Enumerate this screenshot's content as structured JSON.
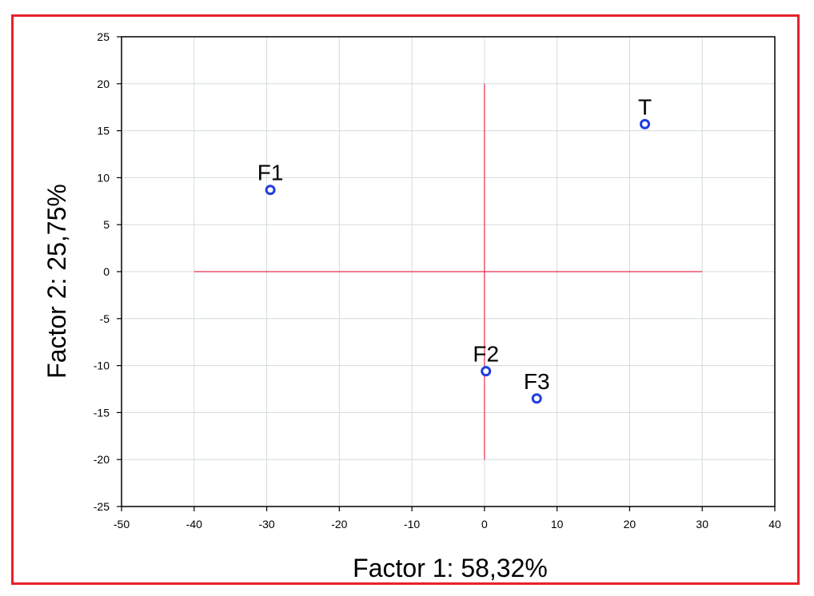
{
  "chart_data": {
    "type": "scatter",
    "xlabel": "Factor 1: 58,32%",
    "ylabel": "Factor 2: 25,75%",
    "xlim": [
      -50,
      40
    ],
    "ylim": [
      -25,
      25
    ],
    "xticks": [
      -50,
      -40,
      -30,
      -20,
      -10,
      0,
      10,
      20,
      30,
      40
    ],
    "yticks": [
      -25,
      -20,
      -15,
      -10,
      -5,
      0,
      5,
      10,
      15,
      20,
      25
    ],
    "grid": true,
    "points": [
      {
        "label": "T",
        "x": 22.1,
        "y": 15.7
      },
      {
        "label": "F1",
        "x": -29.5,
        "y": 8.7
      },
      {
        "label": "F2",
        "x": 0.2,
        "y": -10.6
      },
      {
        "label": "F3",
        "x": 7.2,
        "y": -13.5
      }
    ],
    "reference_lines": {
      "horizontal": {
        "y": 0,
        "x_from": -40,
        "x_to": 30
      },
      "vertical": {
        "x": 0,
        "y_from": -20,
        "y_to": 20
      }
    },
    "colors": {
      "marker": "#1f3de0",
      "reference": "#e8304a",
      "grid": "#d3dcdc",
      "frame": "#e8202a"
    }
  }
}
